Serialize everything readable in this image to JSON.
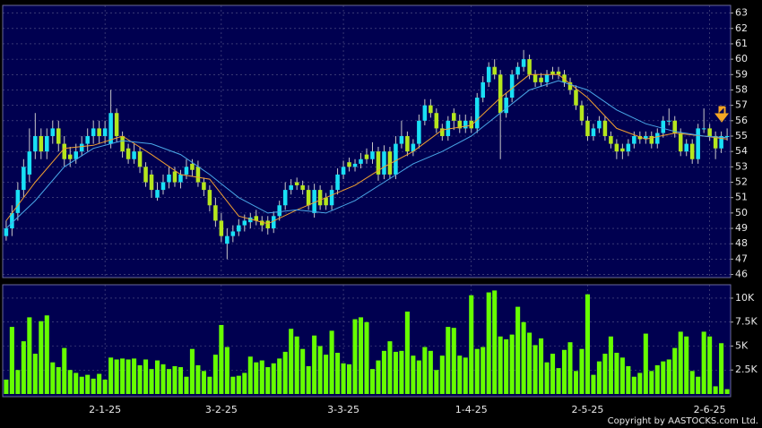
{
  "chart_data": [
    {
      "type": "candlestick",
      "up_color": "#19e0f5",
      "down_color": "#b5e61d",
      "wick_color": "#c8c8c8",
      "xlim": [
        -0.6,
        124.6
      ],
      "ylim": [
        45.8,
        63.5
      ],
      "yticks": [
        46,
        47,
        48,
        49,
        50,
        51,
        52,
        53,
        54,
        55,
        56,
        57,
        58,
        59,
        60,
        61,
        62,
        63
      ],
      "grid": true,
      "open": [
        48.5,
        49,
        50,
        51.5,
        52.5,
        54,
        55,
        54,
        55,
        55.5,
        54.5,
        53.8,
        53.5,
        54,
        54.5,
        55,
        55.5,
        55,
        54.5,
        56.5,
        55,
        54.2,
        53.5,
        54,
        53,
        52.5,
        51,
        51.5,
        52,
        52.7,
        52,
        52.5,
        53.2,
        53,
        52,
        51.5,
        50.5,
        49.5,
        48,
        48.5,
        48.8,
        49.2,
        49.4,
        49.8,
        49.5,
        49.5,
        49,
        49.8,
        50.5,
        51.5,
        52,
        51.8,
        51.5,
        50,
        51.5,
        51,
        50.5,
        51.5,
        52.5,
        53.3,
        53,
        53.2,
        53.8,
        53.5,
        54,
        52.5,
        54,
        52.5,
        54.5,
        55,
        54,
        54.5,
        56,
        57,
        56.5,
        55.5,
        55,
        56.5,
        56,
        55.5,
        56,
        55.5,
        57.5,
        58.5,
        59.5,
        59,
        56.5,
        57.5,
        59,
        59.5,
        60,
        59,
        58.8,
        58.5,
        59.2,
        59.2,
        59,
        58.5,
        58,
        57,
        56,
        55,
        55.5,
        56,
        55,
        54.5,
        54.2,
        54,
        54.5,
        55,
        54.8,
        55,
        54.5,
        55.2,
        56,
        56,
        55.2,
        54,
        54.5,
        53.5,
        55.5,
        55.5,
        55,
        54.2,
        55
      ],
      "high": [
        49.5,
        50.5,
        52,
        53.5,
        55.5,
        56.5,
        55.5,
        55.5,
        56,
        56,
        55,
        54.3,
        54.5,
        55,
        55.5,
        56,
        56,
        56,
        58,
        56.8,
        55.3,
        54.5,
        54.5,
        54.3,
        53.3,
        52.8,
        52,
        52.5,
        53,
        53,
        52.8,
        53.5,
        53.5,
        53.4,
        52.3,
        51.8,
        51,
        50,
        49,
        49.2,
        49.6,
        49.9,
        50,
        50.2,
        49.8,
        49.8,
        50.1,
        50.8,
        52,
        52.2,
        52.3,
        52.1,
        51.8,
        51.9,
        51.8,
        51.3,
        51.8,
        52.9,
        53.4,
        53.6,
        53.5,
        53.9,
        54.2,
        54.6,
        54.3,
        54.4,
        54.3,
        55,
        56,
        55.3,
        54.8,
        56.4,
        57.4,
        57.4,
        56.8,
        55.8,
        56.3,
        56.8,
        56.4,
        56.4,
        56.3,
        57.8,
        58.9,
        59.8,
        60,
        59.3,
        57.8,
        59.3,
        59.8,
        60.6,
        60.3,
        59.3,
        59.1,
        59.3,
        59.5,
        59.5,
        59.3,
        58.8,
        58.3,
        57.3,
        56.3,
        55.8,
        56.3,
        56.3,
        55.3,
        54.8,
        54.5,
        54.8,
        55.3,
        55.3,
        55.3,
        55.3,
        55.5,
        56.3,
        56.8,
        56.3,
        55.5,
        54.8,
        54.8,
        55.8,
        56.8,
        55.8,
        55.3,
        55.3,
        55.5
      ],
      "low": [
        48.2,
        48.5,
        49.5,
        51,
        52,
        53.5,
        53.5,
        53.5,
        54.5,
        54,
        53,
        53,
        53.2,
        53.7,
        54,
        54.5,
        54.5,
        54.5,
        54.2,
        54.6,
        53.6,
        53.2,
        53.2,
        52.6,
        51.7,
        51,
        50.8,
        51.2,
        51.6,
        51.7,
        51.6,
        52.2,
        52.4,
        51.7,
        51.1,
        50.1,
        49.1,
        48.1,
        47,
        48.1,
        48.5,
        48.8,
        49,
        49.2,
        48.8,
        48.6,
        48.7,
        49.5,
        50.2,
        51.2,
        51.5,
        51.2,
        50.2,
        49.7,
        50.2,
        50.2,
        50.2,
        51.2,
        52.2,
        52.7,
        52.7,
        52.9,
        53.2,
        53.2,
        52.1,
        52.2,
        52.2,
        52.2,
        54.2,
        53.7,
        53.7,
        54.2,
        55.7,
        56.2,
        55.2,
        54.7,
        54.7,
        55.4,
        55.2,
        55.2,
        55.2,
        55.2,
        57.2,
        58.2,
        58.7,
        53.5,
        56.2,
        57.2,
        58.7,
        59.2,
        58.7,
        58.2,
        58.2,
        58.2,
        58.7,
        58.7,
        58.2,
        57.7,
        56.7,
        55.7,
        54.7,
        54.7,
        55.2,
        54.7,
        54.2,
        53.5,
        53.5,
        53.7,
        54.2,
        54.5,
        54.5,
        54.2,
        54.2,
        54.9,
        55.7,
        54.9,
        53.7,
        53.7,
        53.2,
        53.2,
        55.2,
        54.7,
        53.5,
        53.9,
        54.7
      ],
      "close": [
        49,
        50,
        51.5,
        53,
        54,
        55,
        54,
        55,
        55.5,
        54.5,
        53.5,
        53.5,
        54,
        54.5,
        55,
        55.5,
        55,
        55.5,
        56.5,
        55,
        54,
        53.5,
        54,
        53,
        52,
        51.5,
        51.5,
        52,
        52.5,
        52,
        52.5,
        53,
        52.8,
        52,
        51.5,
        50.5,
        49.5,
        48.5,
        48.5,
        48.8,
        49.2,
        49.5,
        49.7,
        49.5,
        49.2,
        49,
        49.8,
        50.5,
        51.5,
        51.8,
        51.8,
        51.5,
        50.5,
        51.5,
        50.5,
        50.5,
        51.5,
        52.5,
        53,
        53,
        53.2,
        53.5,
        53.5,
        54,
        52.5,
        54,
        52.5,
        54.5,
        55,
        54,
        54.5,
        56,
        57,
        56.5,
        55.5,
        55,
        56,
        56,
        55.5,
        56,
        55.5,
        57.5,
        58.5,
        59.5,
        59,
        56.5,
        57.5,
        59,
        59.5,
        60,
        59,
        58.5,
        58.5,
        59,
        59,
        59,
        58.5,
        58,
        57,
        56,
        55,
        55.5,
        56,
        55,
        54.5,
        54,
        54,
        54.5,
        55,
        54.8,
        55,
        54.5,
        55.2,
        56,
        56,
        55.2,
        54,
        54.5,
        53.5,
        55.5,
        55.5,
        55,
        54.2,
        55,
        55
      ],
      "lines": [
        {
          "color": "#f0a030",
          "x": [
            0,
            5,
            10,
            15,
            20,
            25,
            30,
            35,
            40,
            45,
            50,
            55,
            60,
            65,
            70,
            75,
            80,
            85,
            90,
            95,
            100,
            105,
            110,
            115,
            120,
            124
          ],
          "values": [
            49.5,
            52,
            54.2,
            54.4,
            55,
            53.8,
            52.5,
            52.2,
            49.8,
            49.3,
            50.2,
            51,
            51.8,
            53,
            54,
            55.4,
            55.7,
            57.5,
            59,
            59,
            57.5,
            55.5,
            54.8,
            55.2,
            55,
            54.8
          ]
        },
        {
          "color": "#4aa8e8",
          "x": [
            0,
            5,
            10,
            15,
            20,
            25,
            30,
            35,
            40,
            45,
            50,
            55,
            60,
            65,
            70,
            75,
            80,
            85,
            90,
            95,
            100,
            105,
            110,
            115,
            120,
            124
          ],
          "values": [
            49,
            50.8,
            53,
            54.2,
            54.7,
            54.5,
            53.8,
            52.5,
            51,
            50,
            50.2,
            50,
            50.8,
            52,
            53.2,
            54,
            55,
            56.5,
            58,
            58.6,
            58,
            56.7,
            55.8,
            55.3,
            55,
            54.9
          ]
        }
      ]
    },
    {
      "type": "bar",
      "color": "#66ff00",
      "xlim": [
        -0.6,
        124.6
      ],
      "ylim": [
        0,
        11400
      ],
      "yticks": [
        {
          "value": 2500,
          "label": "2.5K"
        },
        {
          "value": 5000,
          "label": "5K"
        },
        {
          "value": 7500,
          "label": "7.5K"
        },
        {
          "value": 10000,
          "label": "10K"
        }
      ],
      "xticks": [
        {
          "value": 17,
          "label": "2-1-25"
        },
        {
          "value": 37,
          "label": "3-2-25"
        },
        {
          "value": 58,
          "label": "3-3-25"
        },
        {
          "value": 80,
          "label": "1-4-25"
        },
        {
          "value": 100,
          "label": "2-5-25"
        },
        {
          "value": 121,
          "label": "2-6-25"
        }
      ],
      "values": [
        1500,
        7000,
        2500,
        5500,
        8000,
        4200,
        7600,
        8200,
        3300,
        2800,
        4800,
        2500,
        2200,
        1800,
        2000,
        1600,
        2100,
        1500,
        3800,
        3600,
        3700,
        3600,
        3700,
        3000,
        3600,
        2600,
        3500,
        3100,
        2600,
        2900,
        2800,
        1800,
        4700,
        3000,
        2400,
        1800,
        4100,
        7200,
        4900,
        1800,
        1900,
        2200,
        3900,
        3300,
        3500,
        2800,
        3200,
        3700,
        4400,
        6800,
        6000,
        4700,
        2900,
        6100,
        5000,
        4100,
        6600,
        4300,
        3200,
        3100,
        7800,
        8000,
        7500,
        2600,
        3500,
        4500,
        5500,
        4400,
        4500,
        8600,
        4000,
        3500,
        4900,
        4500,
        2500,
        4000,
        7000,
        6900,
        4000,
        3800,
        10300,
        4700,
        4900,
        10600,
        10800,
        6000,
        5700,
        6200,
        9100,
        7500,
        6400,
        5100,
        5800,
        3300,
        4200,
        2700,
        4600,
        5400,
        2400,
        4700,
        10400,
        2000,
        3400,
        4200,
        6000,
        4300,
        3800,
        2900,
        1800,
        2200,
        6300,
        2400,
        3000,
        3400,
        3600,
        4800,
        6500,
        6000,
        2400,
        1800,
        6500,
        6000,
        800,
        5300,
        500
      ]
    }
  ],
  "footer": "Copyright by AASTOCKS.com Ltd."
}
